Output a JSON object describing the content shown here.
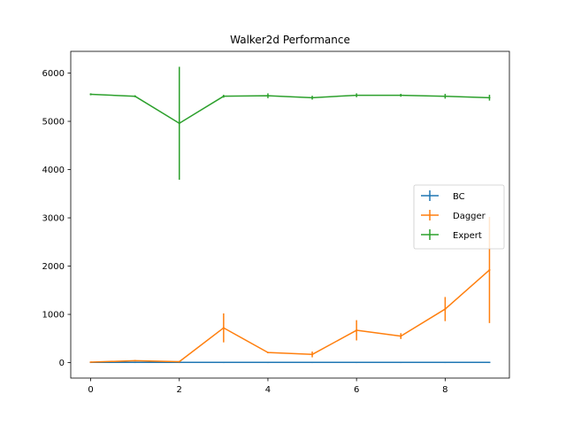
{
  "chart_data": {
    "type": "line",
    "title": "Walker2d Performance",
    "xlabel": "",
    "ylabel": "",
    "xlim": [
      -0.45,
      9.45
    ],
    "ylim": [
      -320,
      6450
    ],
    "xticks": [
      0,
      2,
      4,
      6,
      8
    ],
    "yticks": [
      0,
      1000,
      2000,
      3000,
      4000,
      5000,
      6000
    ],
    "x": [
      0,
      1,
      2,
      3,
      4,
      5,
      6,
      7,
      8,
      9
    ],
    "legend_position": "center-right",
    "grid": false,
    "series": [
      {
        "name": "BC",
        "color": "#1f77b4",
        "values": [
          5,
          5,
          5,
          5,
          5,
          5,
          5,
          5,
          5,
          5
        ],
        "errors": [
          10,
          10,
          10,
          10,
          10,
          10,
          10,
          10,
          10,
          10
        ]
      },
      {
        "name": "Dagger",
        "color": "#ff7f0e",
        "values": [
          10,
          40,
          20,
          720,
          210,
          170,
          670,
          550,
          1110,
          1920
        ],
        "errors": [
          10,
          10,
          10,
          300,
          10,
          60,
          210,
          60,
          250,
          1100
        ]
      },
      {
        "name": "Expert",
        "color": "#2ca02c",
        "values": [
          5560,
          5520,
          4960,
          5520,
          5530,
          5490,
          5540,
          5540,
          5520,
          5490
        ],
        "errors": [
          20,
          20,
          1170,
          30,
          50,
          40,
          40,
          30,
          50,
          60
        ]
      }
    ]
  }
}
